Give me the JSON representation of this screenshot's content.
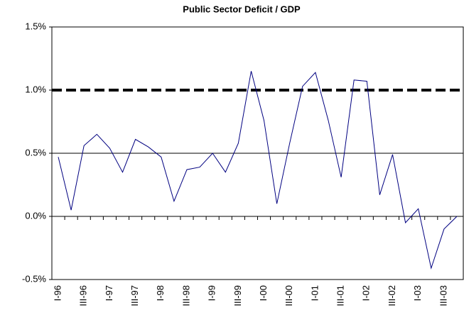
{
  "chart_data": {
    "type": "line",
    "title": "Public Sector Deficit / GDP",
    "categories": [
      "I-96",
      null,
      "III-96",
      null,
      "I-97",
      null,
      "III-97",
      null,
      "I-98",
      null,
      "III-98",
      null,
      "I-99",
      null,
      "III-99",
      null,
      "I-00",
      null,
      "III-00",
      null,
      "I-01",
      null,
      "III-01",
      null,
      "I-02",
      null,
      "III-02",
      null,
      "I-03",
      null,
      "III-03",
      null
    ],
    "series": [
      {
        "name": "Public Sector Deficit / GDP",
        "color": "#000080",
        "values": [
          0.47,
          0.05,
          0.56,
          0.65,
          0.54,
          0.35,
          0.61,
          0.55,
          0.47,
          0.12,
          0.37,
          0.39,
          0.5,
          0.35,
          0.58,
          1.15,
          0.76,
          0.1,
          0.58,
          1.03,
          1.14,
          0.76,
          0.31,
          1.08,
          1.07,
          0.17,
          0.49,
          -0.05,
          0.06,
          -0.41,
          -0.1,
          0.0
        ]
      }
    ],
    "ylim": [
      -0.5,
      1.5
    ],
    "yticks": [
      {
        "value": -0.5,
        "label": "-0.5%"
      },
      {
        "value": 0.0,
        "label": "0.0%"
      },
      {
        "value": 0.5,
        "label": "0.5%"
      },
      {
        "value": 1.0,
        "label": "1.0%"
      },
      {
        "value": 1.5,
        "label": "1.5%"
      }
    ],
    "reference_lines": [
      {
        "value": 1.0,
        "style": "dashed"
      },
      {
        "value": 0.5,
        "style": "solid"
      }
    ]
  }
}
